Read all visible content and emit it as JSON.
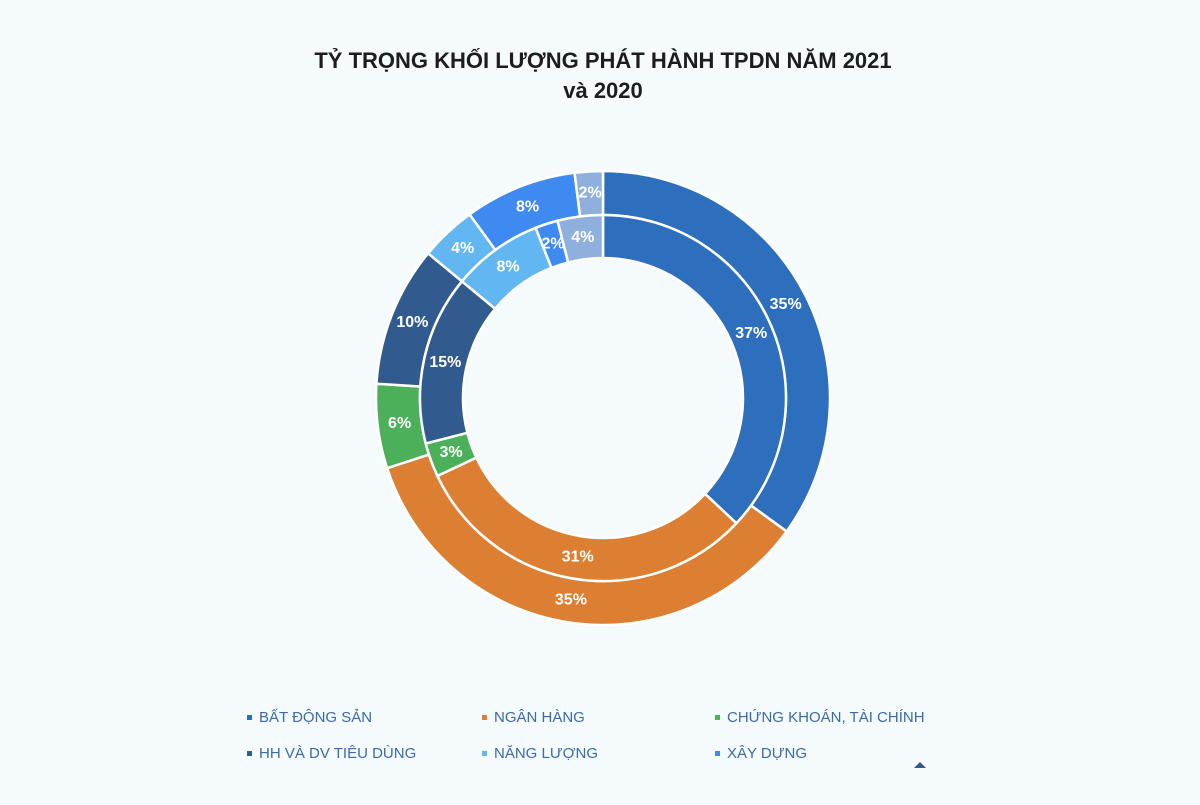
{
  "chart_data": {
    "type": "donut",
    "title": "TỶ TRỌNG KHỐI LƯỢNG PHÁT HÀNH TPDN NĂM 2021 và 2020",
    "categories": [
      "BẤT ĐỘNG SẢN",
      "NGÂN HÀNG",
      "CHỨNG KHOÁN, TÀI CHÍNH",
      "HH VÀ DV TIÊU DÙNG",
      "NĂNG LƯỢNG",
      "XÂY DỰNG",
      null
    ],
    "colors": [
      "#2e6fbd",
      "#dc7f33",
      "#4caf5a",
      "#315a8e",
      "#62b7f3",
      "#3e8af0",
      "#8fb0dc"
    ],
    "series": [
      {
        "values": [
          35,
          35,
          6,
          10,
          4,
          8,
          2
        ],
        "value_labels": [
          "35%",
          "35%",
          "6%",
          "10%",
          "4%",
          "8%",
          "2%"
        ]
      },
      {
        "values": [
          37,
          31,
          3,
          15,
          8,
          2,
          4
        ],
        "value_labels": [
          "37%",
          "31%",
          "3%",
          "15%",
          "8%",
          "2%",
          "4%"
        ]
      }
    ]
  }
}
